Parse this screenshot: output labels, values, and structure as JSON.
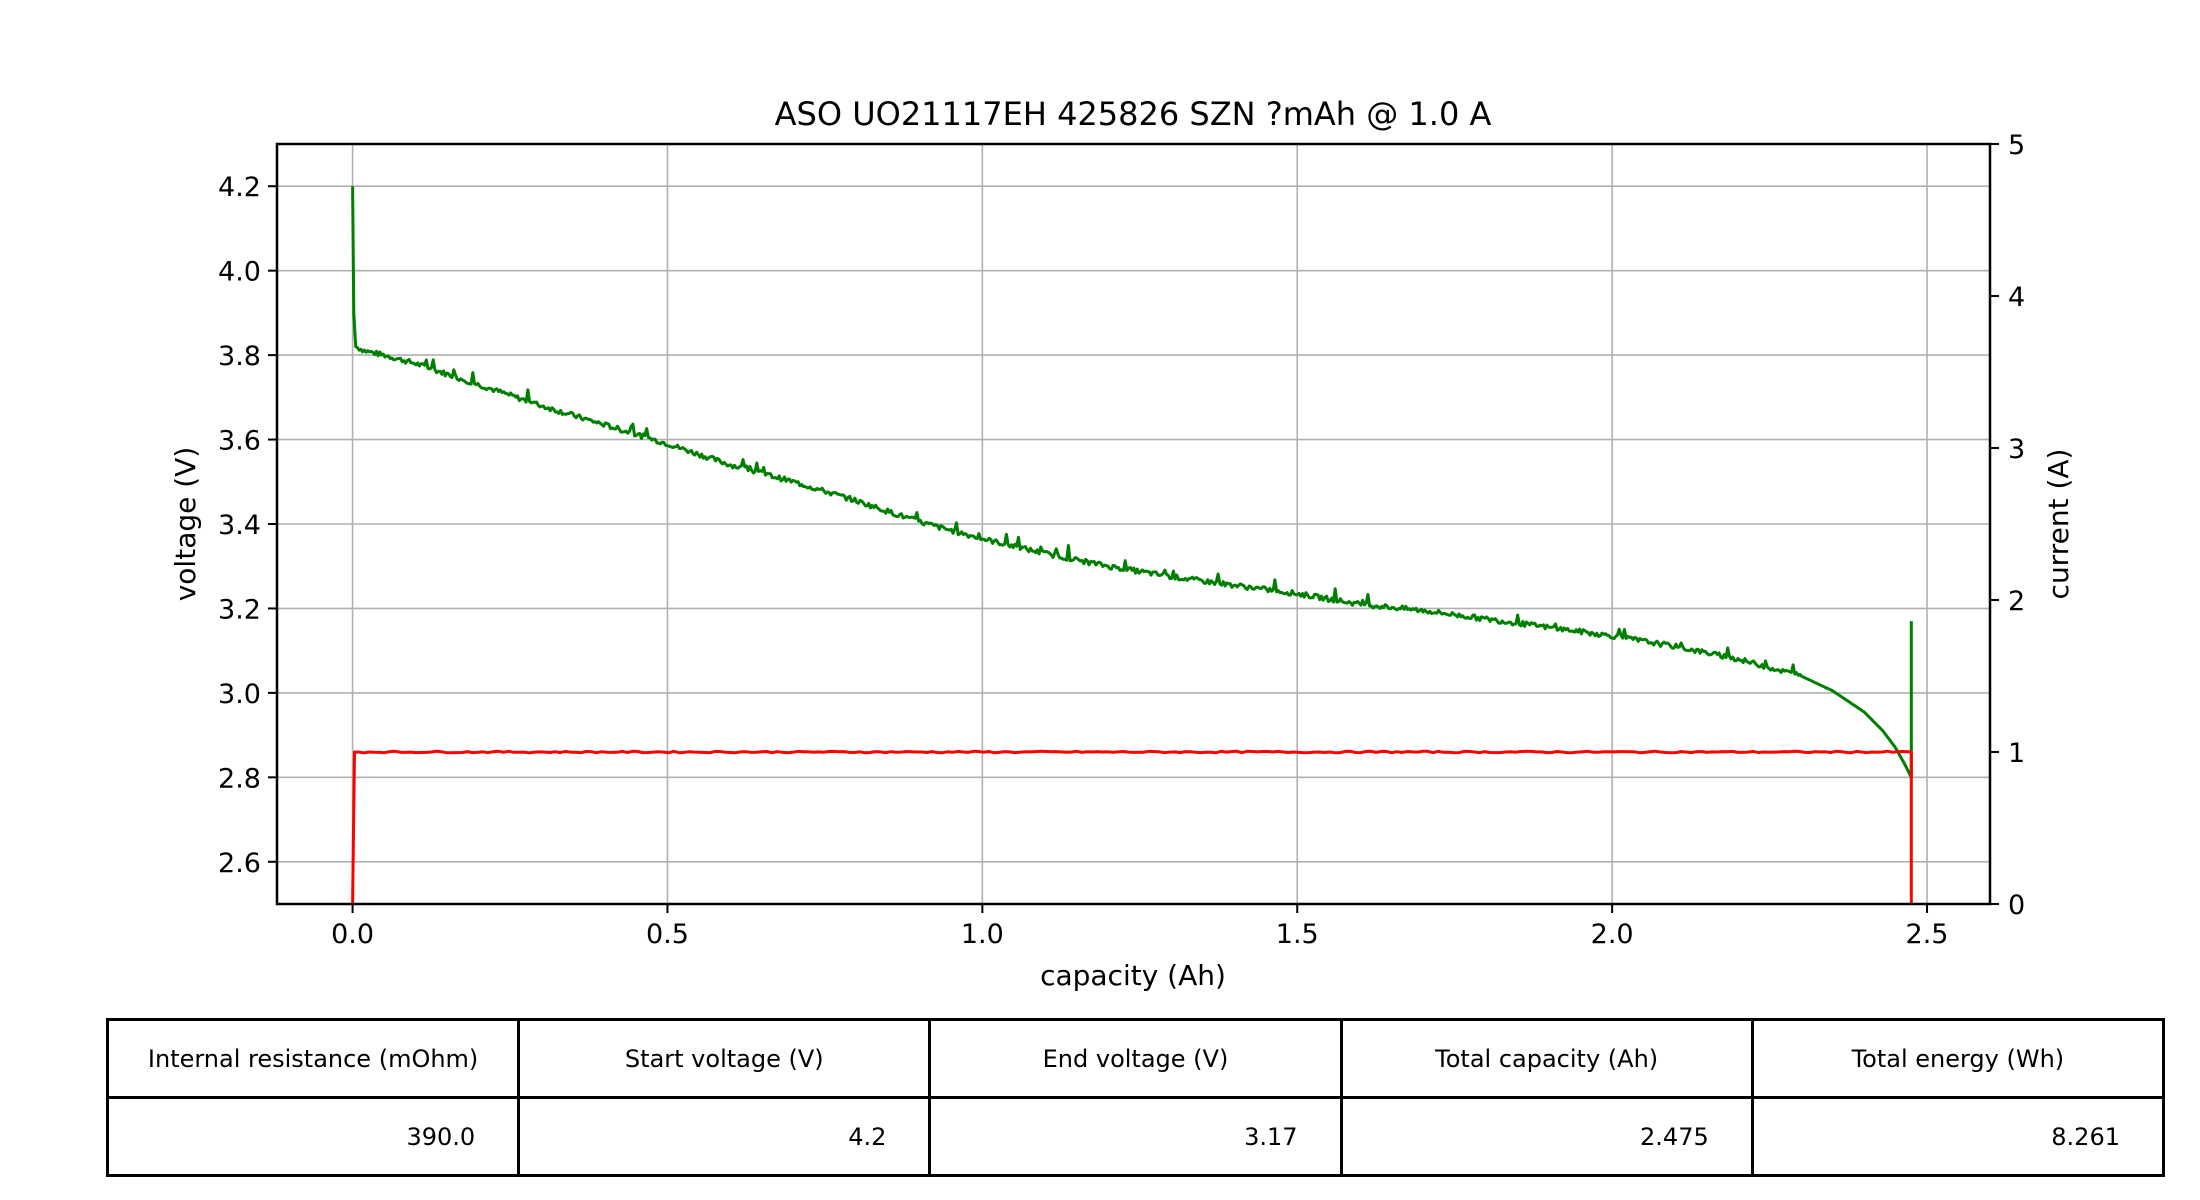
{
  "chart_data": {
    "type": "line",
    "title": "ASO UO21117EH 425826 SZN ?mAh @ 1.0 A",
    "xlabel": "capacity (Ah)",
    "ylabel": "voltage (V)",
    "y2label": "current (A)",
    "xlim": [
      -0.12,
      2.6
    ],
    "ylim": [
      2.5,
      4.3
    ],
    "y2lim": [
      0,
      5
    ],
    "xticks": [
      "0.0",
      "0.5",
      "1.0",
      "1.5",
      "2.0",
      "2.5"
    ],
    "yticks": [
      "2.6",
      "2.8",
      "3.0",
      "3.2",
      "3.4",
      "3.6",
      "3.8",
      "4.0",
      "4.2"
    ],
    "y2ticks": [
      "0",
      "1",
      "2",
      "3",
      "4",
      "5"
    ],
    "grid": true,
    "series": [
      {
        "axis": "left",
        "color": "#008000",
        "x": [
          0.0,
          0.002,
          0.005,
          0.02,
          0.05,
          0.1,
          0.2,
          0.3,
          0.4,
          0.5,
          0.6,
          0.7,
          0.8,
          0.9,
          1.0,
          1.1,
          1.2,
          1.3,
          1.4,
          1.5,
          1.6,
          1.7,
          1.8,
          1.9,
          2.0,
          2.1,
          2.2,
          2.3,
          2.35,
          2.4,
          2.43,
          2.45,
          2.465,
          2.475,
          2.475
        ],
        "values": [
          4.2,
          3.9,
          3.82,
          3.81,
          3.8,
          3.78,
          3.73,
          3.68,
          3.635,
          3.59,
          3.54,
          3.5,
          3.455,
          3.405,
          3.365,
          3.33,
          3.3,
          3.275,
          3.255,
          3.235,
          3.21,
          3.195,
          3.175,
          3.155,
          3.135,
          3.11,
          3.08,
          3.04,
          3.005,
          2.955,
          2.91,
          2.87,
          2.83,
          2.8,
          3.17
        ]
      },
      {
        "axis": "right",
        "color": "#ff0000",
        "x": [
          0.0,
          0.003,
          0.01,
          1.0,
          2.0,
          2.47,
          2.475,
          2.475
        ],
        "values": [
          0.0,
          1.0,
          1.0,
          1.0,
          1.0,
          1.0,
          1.0,
          0.0
        ]
      }
    ]
  },
  "table": {
    "headers": [
      "Internal resistance (mOhm)",
      "Start voltage (V)",
      "End voltage (V)",
      "Total capacity (Ah)",
      "Total energy (Wh)"
    ],
    "values": [
      "390.0",
      "4.2",
      "3.17",
      "2.475",
      "8.261"
    ]
  }
}
